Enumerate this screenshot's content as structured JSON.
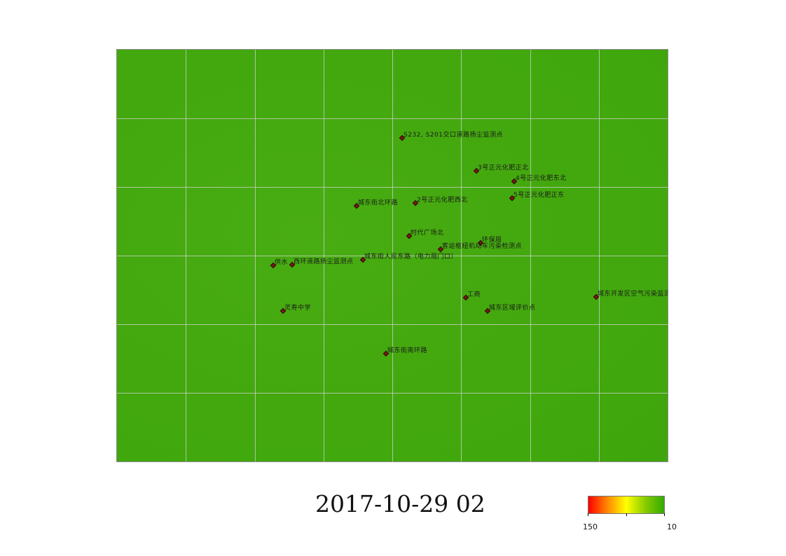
{
  "map": {
    "background_color": "#44a90f",
    "grid_color": "#d2d2d2",
    "grid_columns": 8,
    "grid_rows": 6,
    "stations": [
      {
        "name": "S232, S201交口道路扬尘监测点"
      },
      {
        "name": "3号正元化肥正北"
      },
      {
        "name": "4号正元化肥东北"
      },
      {
        "name": "5号正元化肥正东"
      },
      {
        "name": "城东街北环路"
      },
      {
        "name": "2号正元化肥西北"
      },
      {
        "name": "时代广场北"
      },
      {
        "name": "环保局"
      },
      {
        "name": "客运枢纽机动车污染检测点"
      },
      {
        "name": "城东街人民东路（电力局门口）"
      },
      {
        "name": "供水"
      },
      {
        "name": "西环道路扬尘监测点"
      },
      {
        "name": "城东开发区空气污染监测点"
      },
      {
        "name": "工商"
      },
      {
        "name": "城东区域评价点"
      },
      {
        "name": "灵寿中学"
      },
      {
        "name": "城东街南环路"
      }
    ]
  },
  "timestamp": "2017-10-29 02",
  "legend": {
    "max_label": "150",
    "min_label": "10",
    "colors": [
      "#ff0000",
      "#ff8800",
      "#ffff00",
      "#88cc00",
      "#33aa00"
    ]
  }
}
